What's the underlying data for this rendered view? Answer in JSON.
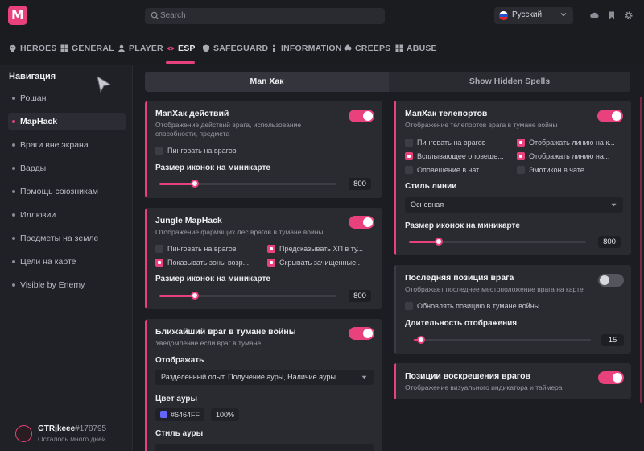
{
  "app": {
    "logo_letter": "M"
  },
  "search": {
    "placeholder": "Search"
  },
  "language": {
    "selected": "Русский"
  },
  "nav_tabs": [
    {
      "label": "HEROES",
      "icon": "skull-icon"
    },
    {
      "label": "GENERAL",
      "icon": "grid-icon"
    },
    {
      "label": "PLAYER",
      "icon": "person-icon"
    },
    {
      "label": "ESP",
      "icon": "eye-icon",
      "active": true
    },
    {
      "label": "SAFEGUARD",
      "icon": "shield-icon"
    },
    {
      "label": "INFORMATION",
      "icon": "info-icon"
    },
    {
      "label": "CREEPS",
      "icon": "creeps-icon"
    },
    {
      "label": "ABUSE",
      "icon": "grid-icon"
    }
  ],
  "sidebar": {
    "title": "Навигация",
    "items": [
      {
        "label": "Рошан"
      },
      {
        "label": "MapHack",
        "active": true
      },
      {
        "label": "Враги вне экрана"
      },
      {
        "label": "Варды"
      },
      {
        "label": "Помощь союзникам"
      },
      {
        "label": "Иллюзии"
      },
      {
        "label": "Предметы на земле"
      },
      {
        "label": "Цели на карте"
      },
      {
        "label": "Visible by Enemy"
      }
    ],
    "user": {
      "name": "GTRjkeee",
      "tag": "#178795",
      "subtitle": "Осталось много дней"
    }
  },
  "content_tabs": [
    {
      "label": "Мап Хак",
      "active": true
    },
    {
      "label": "Show Hidden Spells"
    }
  ],
  "cards": {
    "maphack_actions": {
      "title": "МапХак действий",
      "description": "Отображение действий врага, использование способности, предмета",
      "enabled": true,
      "checkbox": {
        "label": "Пинговать на врагов",
        "checked": false
      },
      "slider": {
        "label": "Размер иконок на миникарте",
        "value": "800",
        "fraction": 0.2
      }
    },
    "jungle_maphack": {
      "title": "Jungle MapHack",
      "description": "Отображение фармящих лес врагов в тумане войны",
      "enabled": true,
      "checkboxes": [
        {
          "label": "Пинговать на врагов",
          "checked": false
        },
        {
          "label": "Предсказывать ХП в ту...",
          "checked": true
        },
        {
          "label": "Показывать зоны возр...",
          "checked": true
        },
        {
          "label": "Скрывать зачищенные...",
          "checked": true
        }
      ],
      "slider": {
        "label": "Размер иконок на миникарте",
        "value": "800",
        "fraction": 0.2
      }
    },
    "nearest_enemy": {
      "title": "Ближайший враг в тумане войны",
      "description": "Уведомление если враг в тумане",
      "enabled": true,
      "display_label": "Отображать",
      "display_value": "Разделенный опыт, Получение ауры, Наличие ауры",
      "aura_color_label": "Цвет ауры",
      "aura_color_hex": "#6464FF",
      "aura_opacity": "100%",
      "aura_style_label": "Стиль ауры"
    },
    "maphack_teleports": {
      "title": "МапХак телепортов",
      "description": "Отображение телепортов врага в тумане войны",
      "enabled": true,
      "checkboxes": [
        {
          "label": "Пинговать на врагов",
          "checked": false
        },
        {
          "label": "Отображать линию на к...",
          "checked": true
        },
        {
          "label": "Всплывающее оповеще...",
          "checked": true
        },
        {
          "label": "Отображать линию на...",
          "checked": true
        },
        {
          "label": "Оповещение в чат",
          "checked": false
        },
        {
          "label": "Эмотикон в чате",
          "checked": false
        }
      ],
      "line_style_label": "Стиль линии",
      "line_style_value": "Основная",
      "slider": {
        "label": "Размер иконок на миникарте",
        "value": "800",
        "fraction": 0.17
      }
    },
    "last_position": {
      "title": "Последняя позиция врага",
      "description": "Отображает последнее местоположение врага на карте",
      "enabled": false,
      "checkbox": {
        "label": "Обновлять позицию в тумане войны",
        "checked": false
      },
      "slider": {
        "label": "Длительность отображения",
        "value": "15",
        "fraction": 0.04
      }
    },
    "respawn_positions": {
      "title": "Позиции воскрешения врагов",
      "description": "Отображение визуального индикатора и таймера",
      "enabled": true
    }
  },
  "colors": {
    "accent": "#e8417c",
    "background": "#1c1d22",
    "card": "#2a2b31",
    "aura": "#6464ff"
  }
}
